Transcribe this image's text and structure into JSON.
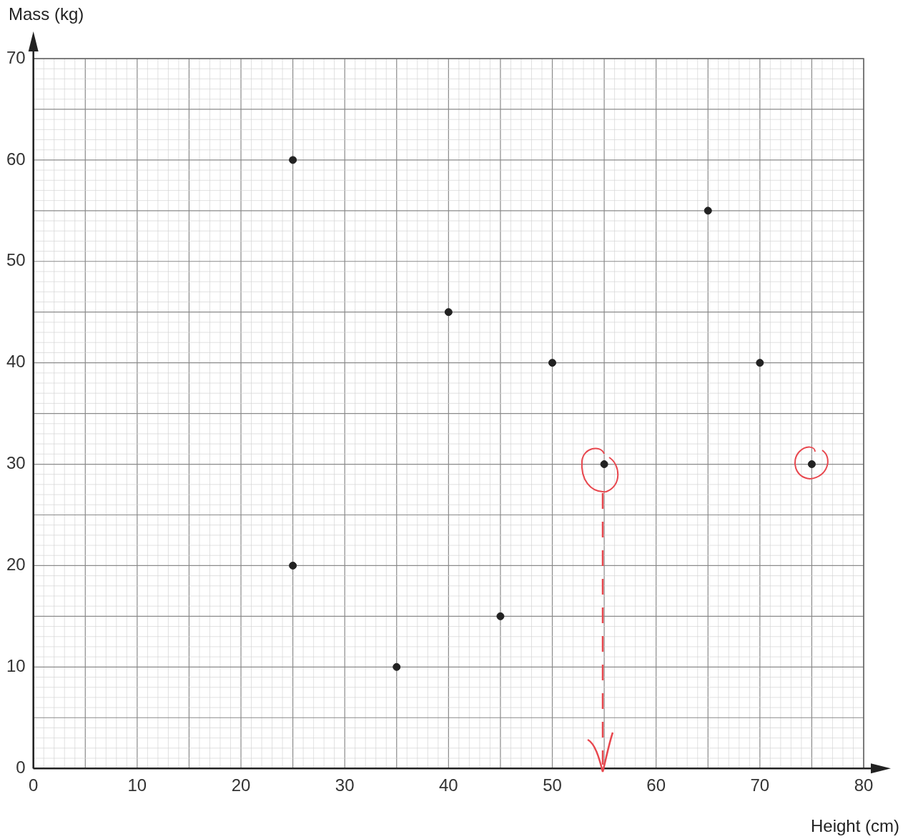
{
  "chart_data": {
    "type": "scatter",
    "xlabel": "Height (cm)",
    "ylabel": "Mass (kg)",
    "x": [
      25,
      25,
      35,
      40,
      45,
      50,
      55,
      65,
      70,
      75
    ],
    "values": [
      60,
      20,
      10,
      45,
      15,
      40,
      30,
      55,
      40,
      30
    ],
    "color": "#222222",
    "marker": "circle",
    "xlim": [
      0,
      80
    ],
    "xticks": [
      0,
      10,
      20,
      30,
      40,
      50,
      60,
      70,
      80
    ],
    "ylim": [
      0,
      70
    ],
    "yticks": [
      0,
      10,
      20,
      30,
      40,
      50,
      60,
      70
    ],
    "grid": true
  }
}
